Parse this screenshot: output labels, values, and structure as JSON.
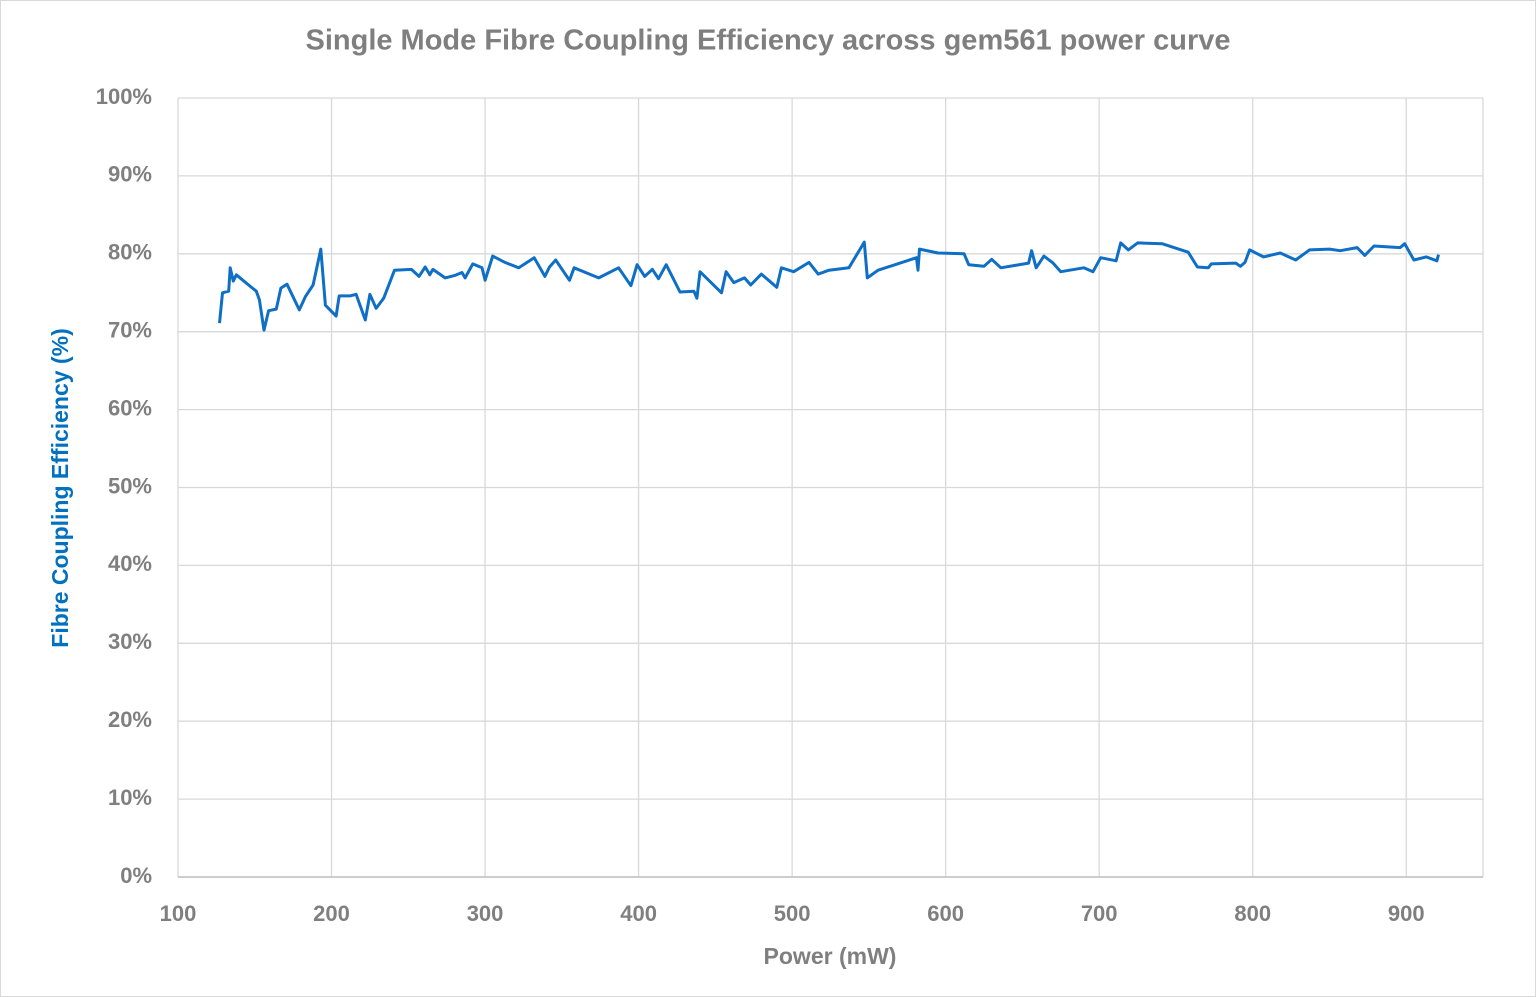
{
  "chart_data": {
    "type": "line",
    "title": "Single Mode Fibre Coupling Efficiency across gem561 power curve",
    "x_label": "Power (mW)",
    "y_label": "Fibre Coupling Efficiency (%)",
    "xlim": [
      100,
      950
    ],
    "xticks": [
      100,
      200,
      300,
      400,
      500,
      600,
      700,
      800,
      900
    ],
    "ylim": [
      0,
      100
    ],
    "yticks": [
      {
        "value": 0,
        "label": "0%"
      },
      {
        "value": 10,
        "label": "10%"
      },
      {
        "value": 20,
        "label": "20%"
      },
      {
        "value": 30,
        "label": "30%"
      },
      {
        "value": 40,
        "label": "40%"
      },
      {
        "value": 50,
        "label": "50%"
      },
      {
        "value": 60,
        "label": "60%"
      },
      {
        "value": 70,
        "label": "70%"
      },
      {
        "value": 80,
        "label": "80%"
      },
      {
        "value": 90,
        "label": "90%"
      },
      {
        "value": 100,
        "label": "100%"
      }
    ],
    "grid": true,
    "series": [
      {
        "color": "#0f6fc6",
        "x": [
          127,
          129,
          133,
          134,
          136,
          138,
          146,
          151,
          153,
          156,
          159,
          164,
          167,
          171,
          179,
          183,
          188,
          193,
          196,
          203,
          205,
          212,
          216,
          222,
          225,
          229,
          234,
          241,
          252,
          257,
          261,
          264,
          266,
          274,
          280,
          285,
          287,
          292,
          298,
          300,
          305,
          313,
          322,
          332,
          339,
          342,
          346,
          355,
          358,
          374,
          387,
          395,
          399,
          404,
          409,
          413,
          418,
          427,
          436,
          438,
          440,
          454,
          457,
          462,
          469,
          473,
          480,
          490,
          493,
          501,
          511,
          517,
          524,
          537,
          547,
          549,
          556,
          581,
          582,
          583,
          595,
          612,
          615,
          625,
          630,
          636,
          654,
          656,
          659,
          664,
          670,
          675,
          690,
          696,
          701,
          711,
          714,
          719,
          725,
          741,
          758,
          764,
          771,
          773,
          789,
          792,
          795,
          798,
          807,
          818,
          828,
          837,
          850,
          857,
          868,
          873,
          879,
          896,
          899,
          905,
          913,
          920,
          921
        ],
        "values": [
          71.1,
          75.0,
          75.2,
          78.2,
          76.5,
          77.3,
          76.0,
          75.2,
          74.1,
          70.2,
          72.7,
          72.9,
          75.6,
          76.1,
          72.8,
          74.5,
          76.0,
          80.6,
          73.4,
          72.0,
          74.6,
          74.6,
          74.8,
          71.5,
          74.8,
          73.0,
          74.3,
          77.9,
          78.0,
          77.1,
          78.3,
          77.3,
          78.0,
          76.9,
          77.2,
          77.6,
          76.9,
          78.7,
          78.2,
          76.6,
          79.7,
          78.9,
          78.2,
          79.5,
          77.1,
          78.3,
          79.2,
          76.6,
          78.2,
          76.9,
          78.2,
          75.9,
          78.6,
          77.1,
          78.0,
          76.8,
          78.6,
          75.1,
          75.2,
          74.3,
          77.7,
          75.0,
          77.7,
          76.3,
          76.9,
          76.0,
          77.4,
          75.7,
          78.2,
          77.7,
          78.9,
          77.4,
          77.9,
          78.2,
          81.5,
          76.9,
          77.9,
          79.5,
          77.9,
          80.6,
          80.1,
          80.0,
          78.6,
          78.4,
          79.3,
          78.2,
          78.8,
          80.4,
          78.2,
          79.7,
          78.8,
          77.7,
          78.2,
          77.7,
          79.5,
          79.1,
          81.4,
          80.5,
          81.4,
          81.3,
          80.2,
          78.3,
          78.2,
          78.7,
          78.8,
          78.4,
          78.9,
          80.5,
          79.6,
          80.1,
          79.2,
          80.5,
          80.6,
          80.4,
          80.8,
          79.8,
          81.0,
          80.8,
          81.3,
          79.2,
          79.6,
          79.1,
          79.9
        ]
      }
    ]
  }
}
